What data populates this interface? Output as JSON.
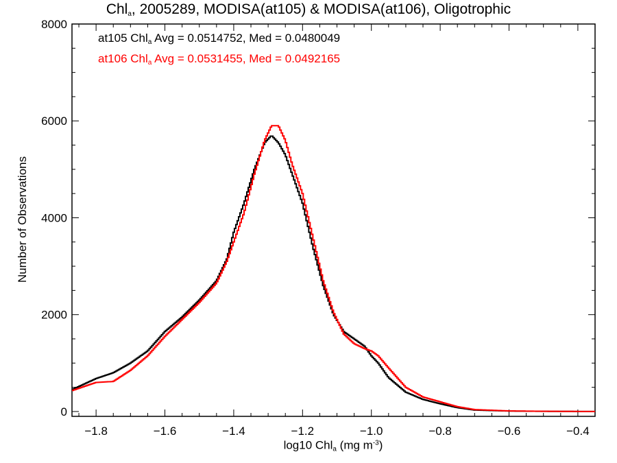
{
  "title": {
    "pre": "Chl",
    "sub": "a",
    "post": ", 2005289, MODISA(at105) & MODISA(at106), Oligotrophic"
  },
  "ylabel": "Number of Observations",
  "xlabel": {
    "pre": "log10 Chl",
    "sub": "a",
    "mid": " (mg m",
    "sup": "-3",
    "post": ")"
  },
  "stats": [
    {
      "pre": "at105 Chl",
      "sub": "a",
      "post": " Avg = 0.0514752, Med = 0.0480049"
    },
    {
      "pre": "at106 Chl",
      "sub": "a",
      "post": " Avg = 0.0531455, Med = 0.0492165"
    }
  ],
  "chart_data": {
    "type": "line",
    "xlim": [
      -1.87,
      -0.35
    ],
    "ylim": [
      -100,
      8000
    ],
    "x_ticks": [
      -1.8,
      -1.6,
      -1.4,
      -1.2,
      -1.0,
      -0.8,
      -0.6,
      -0.4
    ],
    "x_tick_labels": [
      "−1.8",
      "−1.6",
      "−1.4",
      "−1.2",
      "−1.0",
      "−0.8",
      "−0.6",
      "−0.4"
    ],
    "y_ticks": [
      0,
      2000,
      4000,
      6000,
      8000
    ],
    "y_tick_labels": [
      "0",
      "2000",
      "4000",
      "6000",
      "8000"
    ],
    "grid": false,
    "series": [
      {
        "name": "at105",
        "color": "#000000",
        "points": [
          [
            -1.87,
            450
          ],
          [
            -1.8,
            680
          ],
          [
            -1.75,
            800
          ],
          [
            -1.7,
            1000
          ],
          [
            -1.65,
            1250
          ],
          [
            -1.6,
            1650
          ],
          [
            -1.55,
            1950
          ],
          [
            -1.5,
            2300
          ],
          [
            -1.45,
            2700
          ],
          [
            -1.42,
            3150
          ],
          [
            -1.4,
            3700
          ],
          [
            -1.37,
            4300
          ],
          [
            -1.34,
            5000
          ],
          [
            -1.31,
            5550
          ],
          [
            -1.29,
            5700
          ],
          [
            -1.27,
            5550
          ],
          [
            -1.25,
            5300
          ],
          [
            -1.23,
            4900
          ],
          [
            -1.2,
            4300
          ],
          [
            -1.17,
            3400
          ],
          [
            -1.14,
            2600
          ],
          [
            -1.11,
            2000
          ],
          [
            -1.08,
            1650
          ],
          [
            -1.05,
            1500
          ],
          [
            -1.02,
            1350
          ],
          [
            -1.0,
            1150
          ],
          [
            -0.98,
            1000
          ],
          [
            -0.95,
            700
          ],
          [
            -0.9,
            400
          ],
          [
            -0.85,
            250
          ],
          [
            -0.8,
            160
          ],
          [
            -0.75,
            80
          ],
          [
            -0.7,
            30
          ],
          [
            -0.6,
            10
          ],
          [
            -0.5,
            4
          ],
          [
            -0.35,
            0
          ]
        ]
      },
      {
        "name": "at106",
        "color": "#ff0000",
        "points": [
          [
            -1.87,
            430
          ],
          [
            -1.8,
            600
          ],
          [
            -1.75,
            620
          ],
          [
            -1.7,
            850
          ],
          [
            -1.65,
            1150
          ],
          [
            -1.6,
            1550
          ],
          [
            -1.55,
            1900
          ],
          [
            -1.5,
            2250
          ],
          [
            -1.45,
            2650
          ],
          [
            -1.42,
            3100
          ],
          [
            -1.4,
            3500
          ],
          [
            -1.37,
            4100
          ],
          [
            -1.34,
            4900
          ],
          [
            -1.31,
            5600
          ],
          [
            -1.29,
            5900
          ],
          [
            -1.27,
            5900
          ],
          [
            -1.25,
            5600
          ],
          [
            -1.23,
            5100
          ],
          [
            -1.2,
            4500
          ],
          [
            -1.17,
            3600
          ],
          [
            -1.14,
            2700
          ],
          [
            -1.11,
            2050
          ],
          [
            -1.08,
            1600
          ],
          [
            -1.05,
            1400
          ],
          [
            -1.02,
            1300
          ],
          [
            -1.0,
            1250
          ],
          [
            -0.98,
            1150
          ],
          [
            -0.95,
            900
          ],
          [
            -0.9,
            500
          ],
          [
            -0.85,
            300
          ],
          [
            -0.8,
            200
          ],
          [
            -0.75,
            100
          ],
          [
            -0.7,
            40
          ],
          [
            -0.6,
            12
          ],
          [
            -0.5,
            5
          ],
          [
            -0.35,
            0
          ]
        ]
      }
    ]
  }
}
